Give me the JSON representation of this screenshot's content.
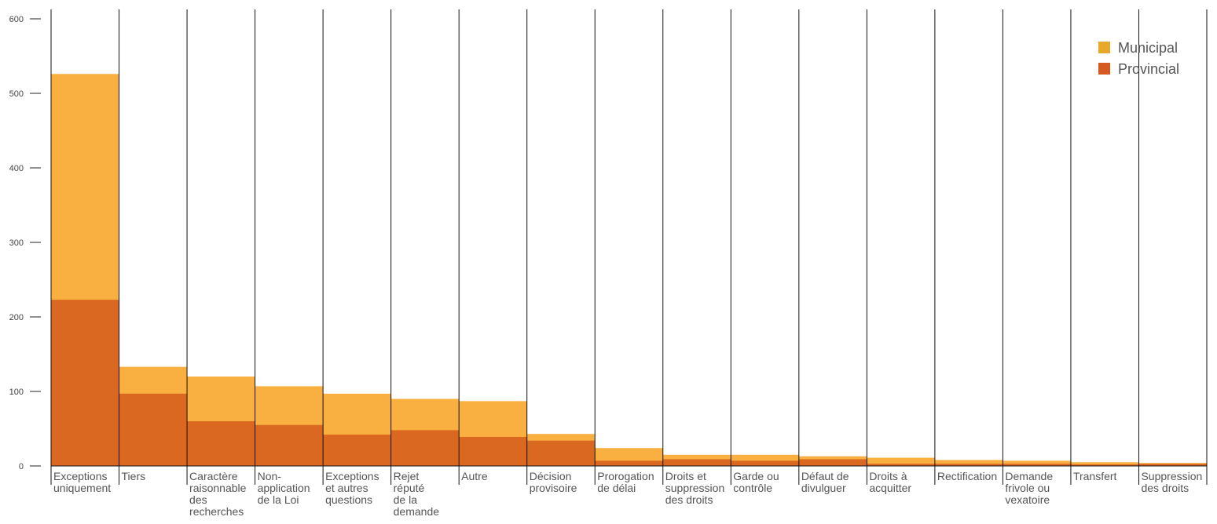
{
  "chart_data": {
    "type": "bar",
    "stacked": false,
    "overlaid": true,
    "categories": [
      [
        "Exceptions",
        "uniquement"
      ],
      [
        "Tiers"
      ],
      [
        "Caractère",
        "raisonnable",
        "des",
        "recherches"
      ],
      [
        "Non-",
        "application",
        "de la Loi"
      ],
      [
        "Exceptions",
        "et autres",
        "questions"
      ],
      [
        "Rejet",
        "réputé",
        "de la",
        "demande"
      ],
      [
        "Autre"
      ],
      [
        "Décision",
        "provisoire"
      ],
      [
        "Prorogation",
        "de délai"
      ],
      [
        "Droits et",
        "suppression",
        "des droits"
      ],
      [
        "Garde ou",
        "contrôle"
      ],
      [
        "Défaut de",
        "divulguer"
      ],
      [
        "Droits à",
        "acquitter"
      ],
      [
        "Rectification"
      ],
      [
        "Demande",
        "frivole ou",
        "vexatoire"
      ],
      [
        "Transfert"
      ],
      [
        "Suppression",
        "des droits"
      ]
    ],
    "series": [
      {
        "name": "Municipal",
        "color": "#F9B040",
        "values": [
          526,
          133,
          120,
          107,
          97,
          90,
          87,
          43,
          24,
          15,
          15,
          13,
          11,
          8,
          7,
          5,
          4
        ]
      },
      {
        "name": "Provincial",
        "color": "#DB6820",
        "values": [
          223,
          97,
          60,
          55,
          42,
          48,
          39,
          34,
          7,
          9,
          7,
          9,
          3,
          3,
          3,
          2,
          3
        ]
      }
    ],
    "ylim": [
      0,
      600
    ],
    "yticks": [
      0,
      100,
      200,
      300,
      400,
      500,
      600
    ],
    "xlabel": "",
    "ylabel": "",
    "title": "",
    "legend_position": "top-right",
    "legend_swatch_colors": [
      "#E8A82A",
      "#D65A1F"
    ],
    "grid": false
  }
}
